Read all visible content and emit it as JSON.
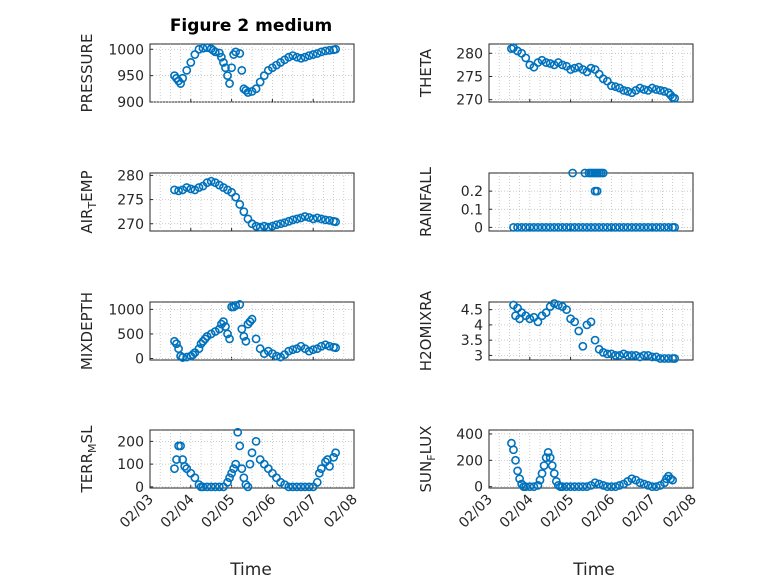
{
  "figure": {
    "title": "Figure 2 medium",
    "marker_color": "#0072bd"
  },
  "chart_data": [
    {
      "type": "scatter",
      "ylabel": "PRESSURE",
      "xlim": [
        "02/03",
        "02/08"
      ],
      "ylim": [
        900,
        1010
      ],
      "yticks": [
        "900",
        "950",
        "1000"
      ],
      "grid": true,
      "x": [
        3.6,
        3.65,
        3.7,
        3.75,
        3.8,
        3.9,
        4.0,
        4.1,
        4.2,
        4.3,
        4.4,
        4.5,
        4.55,
        4.6,
        4.7,
        4.75,
        4.8,
        4.85,
        4.9,
        4.95,
        5.0,
        5.05,
        5.1,
        5.2,
        5.25,
        5.3,
        5.35,
        5.4,
        5.5,
        5.6,
        5.7,
        5.8,
        5.9,
        6.0,
        6.1,
        6.2,
        6.3,
        6.4,
        6.5,
        6.6,
        6.7,
        6.8,
        6.9,
        7.0,
        7.1,
        7.2,
        7.3,
        7.4,
        7.5,
        7.55
      ],
      "y": [
        950,
        945,
        940,
        935,
        945,
        960,
        975,
        990,
        1000,
        1002,
        1003,
        1001,
        998,
        995,
        993,
        985,
        975,
        965,
        950,
        935,
        965,
        990,
        995,
        992,
        960,
        925,
        922,
        918,
        920,
        925,
        938,
        950,
        960,
        965,
        970,
        975,
        980,
        985,
        988,
        985,
        983,
        985,
        988,
        990,
        992,
        995,
        997,
        998,
        999,
        1000
      ]
    },
    {
      "type": "scatter",
      "ylabel": "THETA",
      "xlim": [
        "02/03",
        "02/08"
      ],
      "ylim": [
        269.5,
        282
      ],
      "yticks": [
        "270",
        "275",
        "280"
      ],
      "grid": true,
      "x": [
        3.55,
        3.6,
        3.7,
        3.8,
        3.9,
        4.0,
        4.1,
        4.2,
        4.3,
        4.4,
        4.5,
        4.6,
        4.7,
        4.8,
        4.9,
        5.0,
        5.1,
        5.2,
        5.3,
        5.4,
        5.5,
        5.6,
        5.7,
        5.8,
        5.9,
        6.0,
        6.1,
        6.2,
        6.3,
        6.4,
        6.5,
        6.6,
        6.7,
        6.8,
        6.9,
        7.0,
        7.1,
        7.2,
        7.3,
        7.4,
        7.45,
        7.5,
        7.55
      ],
      "y": [
        281,
        281.2,
        280.5,
        280,
        279,
        277.5,
        277,
        278,
        278.5,
        278,
        277.8,
        277.5,
        278,
        277.5,
        277.2,
        276.5,
        276.8,
        277,
        276.5,
        276,
        276.8,
        276.5,
        275.5,
        274.5,
        274,
        273,
        272.8,
        272.5,
        272,
        271.8,
        271.5,
        272,
        272.5,
        272.2,
        272,
        272.5,
        272.2,
        272,
        271.8,
        271.5,
        271,
        270.5,
        270.3
      ]
    },
    {
      "type": "scatter",
      "ylabel": "AIR",
      "ylabel_sub": "T",
      "ylabel_suffix": "EMP",
      "xlim": [
        "02/03",
        "02/08"
      ],
      "ylim": [
        268.5,
        280.5
      ],
      "yticks": [
        "270",
        "275",
        "280"
      ],
      "grid": true,
      "x": [
        3.6,
        3.7,
        3.8,
        3.9,
        4.0,
        4.1,
        4.2,
        4.3,
        4.4,
        4.5,
        4.6,
        4.7,
        4.8,
        4.9,
        5.0,
        5.1,
        5.2,
        5.3,
        5.4,
        5.5,
        5.6,
        5.7,
        5.8,
        5.9,
        6.0,
        6.1,
        6.2,
        6.3,
        6.4,
        6.5,
        6.6,
        6.7,
        6.8,
        6.9,
        7.0,
        7.1,
        7.2,
        7.3,
        7.4,
        7.5,
        7.55
      ],
      "y": [
        277,
        276.8,
        277,
        277.5,
        277.2,
        277,
        277.5,
        277.8,
        278.5,
        278.8,
        278.5,
        278,
        277.5,
        277,
        276.5,
        275.5,
        274,
        272.5,
        271,
        270,
        269.5,
        269.3,
        269.5,
        269.3,
        269.5,
        269.8,
        270,
        270.2,
        270.5,
        270.8,
        271,
        271.2,
        271.5,
        271.3,
        271,
        271.2,
        271,
        270.8,
        270.7,
        270.5,
        270.4
      ]
    },
    {
      "type": "scatter",
      "ylabel": "RAINFALL",
      "xlim": [
        "02/03",
        "02/08"
      ],
      "ylim": [
        -0.02,
        0.3
      ],
      "yticks": [
        "0",
        "0.1",
        "0.2"
      ],
      "grid": true,
      "x": [
        3.6,
        3.7,
        3.8,
        3.9,
        4.0,
        4.1,
        4.2,
        4.3,
        4.4,
        4.5,
        4.6,
        4.7,
        4.8,
        4.9,
        5.0,
        5.1,
        5.2,
        5.3,
        5.4,
        5.5,
        5.6,
        5.7,
        5.8,
        5.9,
        6.0,
        6.1,
        6.2,
        6.3,
        6.4,
        6.5,
        6.6,
        6.7,
        6.8,
        6.9,
        7.0,
        7.1,
        7.2,
        7.3,
        7.4,
        7.5,
        7.55,
        5.05,
        5.35,
        5.45,
        5.5,
        5.55,
        5.6,
        5.65,
        5.7,
        5.75,
        5.8,
        5.6,
        5.65
      ],
      "y": [
        0,
        0,
        0,
        0,
        0,
        0,
        0,
        0,
        0,
        0,
        0,
        0,
        0,
        0,
        0,
        0,
        0,
        0,
        0,
        0,
        0,
        0,
        0,
        0,
        0,
        0,
        0,
        0,
        0,
        0,
        0,
        0,
        0,
        0,
        0,
        0,
        0,
        0,
        0,
        0,
        0,
        0.3,
        0.3,
        0.3,
        0.3,
        0.3,
        0.3,
        0.3,
        0.3,
        0.3,
        0.3,
        0.2,
        0.2
      ]
    },
    {
      "type": "scatter",
      "ylabel": "MIXDEPTH",
      "xlim": [
        "02/03",
        "02/08"
      ],
      "ylim": [
        -30,
        1150
      ],
      "yticks": [
        "0",
        "500",
        "1000"
      ],
      "grid": true,
      "x": [
        3.6,
        3.65,
        3.7,
        3.75,
        3.8,
        3.9,
        4.0,
        4.05,
        4.1,
        4.2,
        4.25,
        4.3,
        4.35,
        4.4,
        4.5,
        4.6,
        4.7,
        4.75,
        4.8,
        4.85,
        4.9,
        4.95,
        5.0,
        5.05,
        5.1,
        5.2,
        5.25,
        5.3,
        5.35,
        5.4,
        5.45,
        5.5,
        5.6,
        5.7,
        5.8,
        5.9,
        6.0,
        6.1,
        6.2,
        6.3,
        6.4,
        6.5,
        6.6,
        6.7,
        6.8,
        6.9,
        7.0,
        7.1,
        7.2,
        7.3,
        7.4,
        7.5,
        7.55
      ],
      "y": [
        350,
        300,
        200,
        50,
        20,
        30,
        50,
        80,
        120,
        200,
        300,
        350,
        400,
        450,
        500,
        550,
        600,
        700,
        750,
        650,
        500,
        400,
        1050,
        1050,
        1080,
        1100,
        600,
        450,
        350,
        700,
        750,
        800,
        400,
        200,
        100,
        150,
        100,
        50,
        30,
        80,
        150,
        180,
        200,
        250,
        200,
        150,
        180,
        200,
        250,
        280,
        250,
        230,
        220
      ]
    },
    {
      "type": "scatter",
      "ylabel": "H2OMIXRA",
      "xlim": [
        "02/03",
        "02/08"
      ],
      "ylim": [
        2.85,
        4.75
      ],
      "yticks": [
        "3",
        "3.5",
        "4",
        "4.5"
      ],
      "grid": true,
      "x": [
        3.6,
        3.65,
        3.7,
        3.75,
        3.8,
        3.9,
        4.0,
        4.1,
        4.2,
        4.3,
        4.4,
        4.5,
        4.6,
        4.7,
        4.8,
        4.9,
        5.0,
        5.1,
        5.2,
        5.3,
        5.4,
        5.5,
        5.6,
        5.7,
        5.8,
        5.9,
        6.0,
        6.1,
        6.2,
        6.3,
        6.4,
        6.5,
        6.6,
        6.7,
        6.8,
        6.9,
        7.0,
        7.1,
        7.2,
        7.3,
        7.4,
        7.5,
        7.55
      ],
      "y": [
        4.65,
        4.3,
        4.55,
        4.2,
        4.4,
        4.3,
        4.2,
        4.25,
        4.1,
        4.3,
        4.4,
        4.6,
        4.7,
        4.65,
        4.6,
        4.5,
        4.2,
        4.1,
        3.8,
        3.3,
        4.0,
        4.1,
        3.5,
        3.2,
        3.1,
        3.05,
        3.05,
        3.0,
        3.0,
        3.05,
        3.0,
        3.0,
        3.0,
        2.95,
        3.0,
        3.0,
        2.95,
        2.95,
        2.9,
        2.9,
        2.9,
        2.9,
        2.9
      ]
    },
    {
      "type": "scatter",
      "ylabel": "TERR",
      "ylabel_sub": "M",
      "ylabel_suffix": "SL",
      "xlim": [
        "02/03",
        "02/08"
      ],
      "ylim": [
        -5,
        250
      ],
      "yticks": [
        "0",
        "100",
        "200"
      ],
      "grid": true,
      "x": [
        3.6,
        3.65,
        3.7,
        3.75,
        3.8,
        3.85,
        3.9,
        4.0,
        4.1,
        4.2,
        4.25,
        4.3,
        4.4,
        4.5,
        4.6,
        4.7,
        4.8,
        4.9,
        4.95,
        5.0,
        5.05,
        5.1,
        5.15,
        5.2,
        5.25,
        5.3,
        5.35,
        5.4,
        5.45,
        5.5,
        5.6,
        5.7,
        5.8,
        5.9,
        6.0,
        6.1,
        6.2,
        6.3,
        6.4,
        6.5,
        6.6,
        6.7,
        6.8,
        6.9,
        7.0,
        7.1,
        7.15,
        7.2,
        7.3,
        7.35,
        7.4,
        7.5,
        7.55
      ],
      "y": [
        80,
        120,
        180,
        180,
        120,
        90,
        80,
        60,
        40,
        10,
        0,
        0,
        0,
        0,
        0,
        0,
        0,
        20,
        40,
        60,
        80,
        100,
        240,
        180,
        80,
        40,
        10,
        0,
        100,
        150,
        200,
        120,
        100,
        80,
        60,
        40,
        20,
        10,
        0,
        0,
        0,
        0,
        0,
        0,
        0,
        20,
        60,
        80,
        110,
        120,
        90,
        130,
        150
      ]
    },
    {
      "type": "scatter",
      "ylabel": "SUN",
      "ylabel_sub": "F",
      "ylabel_suffix": "LUX",
      "xlim": [
        "02/03",
        "02/08"
      ],
      "ylim": [
        -10,
        430
      ],
      "yticks": [
        "0",
        "200",
        "400"
      ],
      "grid": true,
      "x": [
        3.55,
        3.6,
        3.65,
        3.7,
        3.75,
        3.8,
        3.85,
        3.9,
        4.0,
        4.1,
        4.2,
        4.25,
        4.3,
        4.35,
        4.4,
        4.45,
        4.5,
        4.55,
        4.6,
        4.65,
        4.7,
        4.75,
        4.8,
        4.9,
        5.0,
        5.1,
        5.2,
        5.3,
        5.4,
        5.5,
        5.6,
        5.7,
        5.8,
        5.9,
        6.0,
        6.1,
        6.2,
        6.3,
        6.4,
        6.5,
        6.6,
        6.7,
        6.8,
        6.9,
        7.0,
        7.1,
        7.2,
        7.3,
        7.35,
        7.4,
        7.45,
        7.5
      ],
      "y": [
        330,
        280,
        200,
        120,
        60,
        20,
        0,
        0,
        0,
        0,
        10,
        50,
        100,
        160,
        220,
        260,
        220,
        160,
        100,
        40,
        10,
        0,
        0,
        0,
        0,
        0,
        0,
        0,
        0,
        10,
        30,
        20,
        10,
        0,
        0,
        0,
        10,
        20,
        40,
        60,
        50,
        30,
        20,
        10,
        0,
        0,
        10,
        30,
        60,
        80,
        60,
        50
      ]
    }
  ],
  "x_axis": {
    "label": "Time",
    "ticks": [
      "02/03",
      "02/04",
      "02/05",
      "02/06",
      "02/07",
      "02/08"
    ]
  }
}
